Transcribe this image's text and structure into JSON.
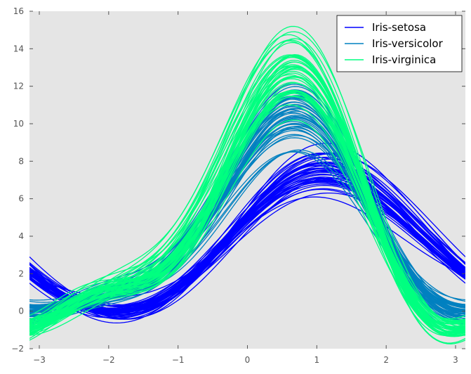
{
  "chart_data": {
    "type": "line",
    "subtype": "andrews-curves",
    "title": "",
    "xlabel": "",
    "ylabel": "",
    "xlim": [
      -3.14159,
      3.14159
    ],
    "ylim": [
      -2,
      16
    ],
    "xticks": [
      -3,
      -2,
      -1,
      0,
      1,
      2,
      3
    ],
    "yticks": [
      -2,
      0,
      2,
      4,
      6,
      8,
      10,
      12,
      14,
      16
    ],
    "grid": false,
    "background": "#e5e5e5",
    "legend_position": "top-right",
    "formula": "f(t) = x1/sqrt(2) + x2*sin(t) + x3*cos(t) + x4*sin(2t)",
    "series": [
      {
        "name": "Iris-setosa",
        "color": "#0000ff",
        "samples": [
          [
            5.1,
            3.5,
            1.4,
            0.2
          ],
          [
            4.9,
            3.0,
            1.4,
            0.2
          ],
          [
            4.7,
            3.2,
            1.3,
            0.2
          ],
          [
            4.6,
            3.1,
            1.5,
            0.2
          ],
          [
            5.0,
            3.6,
            1.4,
            0.2
          ],
          [
            5.4,
            3.9,
            1.7,
            0.4
          ],
          [
            4.6,
            3.4,
            1.4,
            0.3
          ],
          [
            5.0,
            3.4,
            1.5,
            0.2
          ],
          [
            4.4,
            2.9,
            1.4,
            0.2
          ],
          [
            4.9,
            3.1,
            1.5,
            0.1
          ],
          [
            5.4,
            3.7,
            1.5,
            0.2
          ],
          [
            4.8,
            3.4,
            1.6,
            0.2
          ],
          [
            4.8,
            3.0,
            1.4,
            0.1
          ],
          [
            4.3,
            3.0,
            1.1,
            0.1
          ],
          [
            5.8,
            4.0,
            1.2,
            0.2
          ],
          [
            5.7,
            4.4,
            1.5,
            0.4
          ],
          [
            5.4,
            3.9,
            1.3,
            0.4
          ],
          [
            5.1,
            3.5,
            1.4,
            0.3
          ],
          [
            5.7,
            3.8,
            1.7,
            0.3
          ],
          [
            5.1,
            3.8,
            1.5,
            0.3
          ],
          [
            5.4,
            3.4,
            1.7,
            0.2
          ],
          [
            5.1,
            3.7,
            1.5,
            0.4
          ],
          [
            4.6,
            3.6,
            1.0,
            0.2
          ],
          [
            5.1,
            3.3,
            1.7,
            0.5
          ],
          [
            4.8,
            3.4,
            1.9,
            0.2
          ],
          [
            5.0,
            3.0,
            1.6,
            0.2
          ],
          [
            5.0,
            3.4,
            1.6,
            0.4
          ],
          [
            5.2,
            3.5,
            1.5,
            0.2
          ],
          [
            5.2,
            3.4,
            1.4,
            0.2
          ],
          [
            4.7,
            3.2,
            1.6,
            0.2
          ],
          [
            4.8,
            3.1,
            1.6,
            0.2
          ],
          [
            5.4,
            3.4,
            1.5,
            0.4
          ],
          [
            5.2,
            4.1,
            1.5,
            0.1
          ],
          [
            5.5,
            4.2,
            1.4,
            0.2
          ],
          [
            4.9,
            3.1,
            1.5,
            0.1
          ],
          [
            5.0,
            3.2,
            1.2,
            0.2
          ],
          [
            5.5,
            3.5,
            1.3,
            0.2
          ],
          [
            4.9,
            3.1,
            1.5,
            0.1
          ],
          [
            4.4,
            3.0,
            1.3,
            0.2
          ],
          [
            5.1,
            3.4,
            1.5,
            0.2
          ],
          [
            5.0,
            3.5,
            1.3,
            0.3
          ],
          [
            4.5,
            2.3,
            1.3,
            0.3
          ],
          [
            4.4,
            3.2,
            1.3,
            0.2
          ],
          [
            5.0,
            3.5,
            1.6,
            0.6
          ],
          [
            5.1,
            3.8,
            1.9,
            0.4
          ],
          [
            4.8,
            3.0,
            1.4,
            0.3
          ],
          [
            5.1,
            3.8,
            1.6,
            0.2
          ],
          [
            4.6,
            3.2,
            1.4,
            0.2
          ],
          [
            5.3,
            3.7,
            1.5,
            0.2
          ],
          [
            5.0,
            3.3,
            1.4,
            0.2
          ]
        ]
      },
      {
        "name": "Iris-versicolor",
        "color": "#0080c0",
        "samples": [
          [
            7.0,
            3.2,
            4.7,
            1.4
          ],
          [
            6.4,
            3.2,
            4.5,
            1.5
          ],
          [
            6.9,
            3.1,
            4.9,
            1.5
          ],
          [
            5.5,
            2.3,
            4.0,
            1.3
          ],
          [
            6.5,
            2.8,
            4.6,
            1.5
          ],
          [
            5.7,
            2.8,
            4.5,
            1.3
          ],
          [
            6.3,
            3.3,
            4.7,
            1.6
          ],
          [
            4.9,
            2.4,
            3.3,
            1.0
          ],
          [
            6.6,
            2.9,
            4.6,
            1.3
          ],
          [
            5.2,
            2.7,
            3.9,
            1.4
          ],
          [
            5.0,
            2.0,
            3.5,
            1.0
          ],
          [
            5.9,
            3.0,
            4.2,
            1.5
          ],
          [
            6.0,
            2.2,
            4.0,
            1.0
          ],
          [
            6.1,
            2.9,
            4.7,
            1.4
          ],
          [
            5.6,
            2.9,
            3.6,
            1.3
          ],
          [
            6.7,
            3.1,
            4.4,
            1.4
          ],
          [
            5.6,
            3.0,
            4.5,
            1.5
          ],
          [
            5.8,
            2.7,
            4.1,
            1.0
          ],
          [
            6.2,
            2.2,
            4.5,
            1.5
          ],
          [
            5.6,
            2.5,
            3.9,
            1.1
          ],
          [
            5.9,
            3.2,
            4.8,
            1.8
          ],
          [
            6.1,
            2.8,
            4.0,
            1.3
          ],
          [
            6.3,
            2.5,
            4.9,
            1.5
          ],
          [
            6.1,
            2.8,
            4.7,
            1.2
          ],
          [
            6.4,
            2.9,
            4.3,
            1.3
          ],
          [
            6.6,
            3.0,
            4.4,
            1.4
          ],
          [
            6.8,
            2.8,
            4.8,
            1.4
          ],
          [
            6.7,
            3.0,
            5.0,
            1.7
          ],
          [
            6.0,
            2.9,
            4.5,
            1.5
          ],
          [
            5.7,
            2.6,
            3.5,
            1.0
          ],
          [
            5.5,
            2.4,
            3.8,
            1.1
          ],
          [
            5.5,
            2.4,
            3.7,
            1.0
          ],
          [
            5.8,
            2.7,
            3.9,
            1.2
          ],
          [
            6.0,
            2.7,
            5.1,
            1.6
          ],
          [
            5.4,
            3.0,
            4.5,
            1.5
          ],
          [
            6.0,
            3.4,
            4.5,
            1.6
          ],
          [
            6.7,
            3.1,
            4.7,
            1.5
          ],
          [
            6.3,
            2.3,
            4.4,
            1.3
          ],
          [
            5.6,
            3.0,
            4.1,
            1.3
          ],
          [
            5.5,
            2.5,
            4.0,
            1.3
          ],
          [
            5.5,
            2.6,
            4.4,
            1.2
          ],
          [
            6.1,
            3.0,
            4.6,
            1.4
          ],
          [
            5.8,
            2.6,
            4.0,
            1.2
          ],
          [
            5.0,
            2.3,
            3.3,
            1.0
          ],
          [
            5.6,
            2.7,
            4.2,
            1.3
          ],
          [
            5.7,
            3.0,
            4.2,
            1.2
          ],
          [
            5.7,
            2.9,
            4.2,
            1.3
          ],
          [
            6.2,
            2.9,
            4.3,
            1.3
          ],
          [
            5.1,
            2.5,
            3.0,
            1.1
          ],
          [
            5.7,
            2.8,
            4.1,
            1.3
          ]
        ]
      },
      {
        "name": "Iris-virginica",
        "color": "#00ff80",
        "samples": [
          [
            6.3,
            3.3,
            6.0,
            2.5
          ],
          [
            5.8,
            2.7,
            5.1,
            1.9
          ],
          [
            7.1,
            3.0,
            5.9,
            2.1
          ],
          [
            6.3,
            2.9,
            5.6,
            1.8
          ],
          [
            6.5,
            3.0,
            5.8,
            2.2
          ],
          [
            7.6,
            3.0,
            6.6,
            2.1
          ],
          [
            4.9,
            2.5,
            4.5,
            1.7
          ],
          [
            7.3,
            2.9,
            6.3,
            1.8
          ],
          [
            6.7,
            2.5,
            5.8,
            1.8
          ],
          [
            7.2,
            3.6,
            6.1,
            2.5
          ],
          [
            6.5,
            3.2,
            5.1,
            2.0
          ],
          [
            6.4,
            2.7,
            5.3,
            1.9
          ],
          [
            6.8,
            3.0,
            5.5,
            2.1
          ],
          [
            5.7,
            2.5,
            5.0,
            2.0
          ],
          [
            5.8,
            2.8,
            5.1,
            2.4
          ],
          [
            6.4,
            3.2,
            5.3,
            2.3
          ],
          [
            6.5,
            3.0,
            5.5,
            1.8
          ],
          [
            7.7,
            3.8,
            6.7,
            2.2
          ],
          [
            7.7,
            2.6,
            6.9,
            2.3
          ],
          [
            6.0,
            2.2,
            5.0,
            1.5
          ],
          [
            6.9,
            3.2,
            5.7,
            2.3
          ],
          [
            5.6,
            2.8,
            4.9,
            2.0
          ],
          [
            7.7,
            2.8,
            6.7,
            2.0
          ],
          [
            6.3,
            2.7,
            4.9,
            1.8
          ],
          [
            6.7,
            3.3,
            5.7,
            2.1
          ],
          [
            7.2,
            3.2,
            6.0,
            1.8
          ],
          [
            6.2,
            2.8,
            4.8,
            1.8
          ],
          [
            6.1,
            3.0,
            4.9,
            1.8
          ],
          [
            6.4,
            2.8,
            5.6,
            2.1
          ],
          [
            7.2,
            3.0,
            5.8,
            1.6
          ],
          [
            7.4,
            2.8,
            6.1,
            1.9
          ],
          [
            7.9,
            3.8,
            6.4,
            2.0
          ],
          [
            6.4,
            2.8,
            5.6,
            2.2
          ],
          [
            6.3,
            2.8,
            5.1,
            1.5
          ],
          [
            6.1,
            2.6,
            5.6,
            1.4
          ],
          [
            7.7,
            3.0,
            6.1,
            2.3
          ],
          [
            6.3,
            3.4,
            5.6,
            2.4
          ],
          [
            6.4,
            3.1,
            5.5,
            1.8
          ],
          [
            6.0,
            3.0,
            4.8,
            1.8
          ],
          [
            6.9,
            3.1,
            5.4,
            2.1
          ],
          [
            6.7,
            3.1,
            5.6,
            2.4
          ],
          [
            6.9,
            3.1,
            5.1,
            2.3
          ],
          [
            5.8,
            2.7,
            5.1,
            1.9
          ],
          [
            6.8,
            3.2,
            5.9,
            2.3
          ],
          [
            6.7,
            3.3,
            5.7,
            2.5
          ],
          [
            6.7,
            3.0,
            5.2,
            2.3
          ],
          [
            6.3,
            2.5,
            5.0,
            1.9
          ],
          [
            6.5,
            3.0,
            5.2,
            2.0
          ],
          [
            6.2,
            3.4,
            5.4,
            2.3
          ],
          [
            5.9,
            3.0,
            5.1,
            1.8
          ]
        ]
      }
    ]
  }
}
